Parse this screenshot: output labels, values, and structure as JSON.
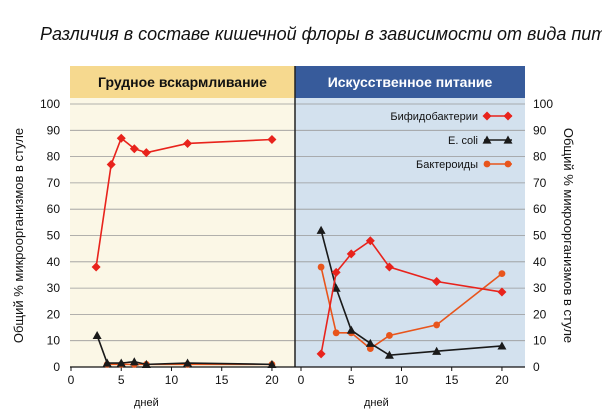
{
  "title": "Различия в составе кишечной флоры в зависимости от вида пита",
  "colors": {
    "bifido": "#e8231c",
    "ecoli": "#1a1a1a",
    "bactero": "#e8551c",
    "left_panel": "#fbf7e6",
    "right_panel": "#d3e1ee",
    "header_left": "#f6d98f",
    "header_right": "#375b9b",
    "grid": "#999999",
    "ground_yellow": "#f0c020"
  },
  "chart_data": [
    {
      "type": "line",
      "panel": "left",
      "panel_title": "Грудное вскармливание",
      "xlabel": "дней",
      "ylabel": "Общий % микроорганизмов в стуле",
      "xlim": [
        0,
        21
      ],
      "ylim": [
        0,
        100
      ],
      "xticks": [
        "0",
        "5",
        "10",
        "15",
        "20"
      ],
      "yticks": [
        "0",
        "10",
        "20",
        "30",
        "40",
        "50",
        "60",
        "70",
        "80",
        "90",
        "100"
      ],
      "grid": true,
      "series": [
        {
          "name": "Бифидобактерии",
          "marker": "diamond",
          "x": [
            2.5,
            4,
            5,
            6.3,
            7.5,
            11.6,
            20
          ],
          "y": [
            38,
            77,
            87,
            83,
            81.5,
            85,
            86.5
          ]
        },
        {
          "name": "E. coli",
          "marker": "triangle",
          "x": [
            2.6,
            3.6,
            5,
            6.3,
            7.5,
            11.6,
            20
          ],
          "y": [
            12,
            1.5,
            1.5,
            2,
            1,
            1.5,
            1
          ]
        },
        {
          "name": "Бактероиды",
          "marker": "circle",
          "x": [
            3.6,
            5,
            6.3,
            7.5,
            11.6,
            20
          ],
          "y": [
            1,
            1,
            1,
            1,
            1,
            1
          ]
        }
      ]
    },
    {
      "type": "line",
      "panel": "right",
      "panel_title": "Искусственное питание",
      "xlabel": "дней",
      "ylabel": "Общий % микроорганизмов в стуле",
      "xlim": [
        0,
        21
      ],
      "ylim": [
        0,
        100
      ],
      "xticks": [
        "0",
        "5",
        "10",
        "15",
        "20"
      ],
      "yticks": [
        "0",
        "10",
        "20",
        "30",
        "40",
        "50",
        "60",
        "70",
        "80",
        "90",
        "100"
      ],
      "grid": true,
      "legend_position": "top-right",
      "series": [
        {
          "name": "Бифидобактерии",
          "marker": "diamond",
          "x": [
            2,
            3.5,
            5,
            6.9,
            8.8,
            13.5,
            20
          ],
          "y": [
            5,
            36,
            43,
            48,
            38,
            32.5,
            28.5
          ]
        },
        {
          "name": "E. coli",
          "marker": "triangle",
          "x": [
            2,
            3.5,
            5,
            6.9,
            8.8,
            13.5,
            20
          ],
          "y": [
            52,
            30,
            14,
            9,
            4.5,
            6,
            8
          ]
        },
        {
          "name": "Бактероиды",
          "marker": "circle",
          "x": [
            2,
            3.5,
            5,
            6.9,
            8.8,
            13.5,
            20
          ],
          "y": [
            38,
            13,
            13,
            7,
            12,
            16,
            35.5
          ]
        }
      ]
    }
  ]
}
